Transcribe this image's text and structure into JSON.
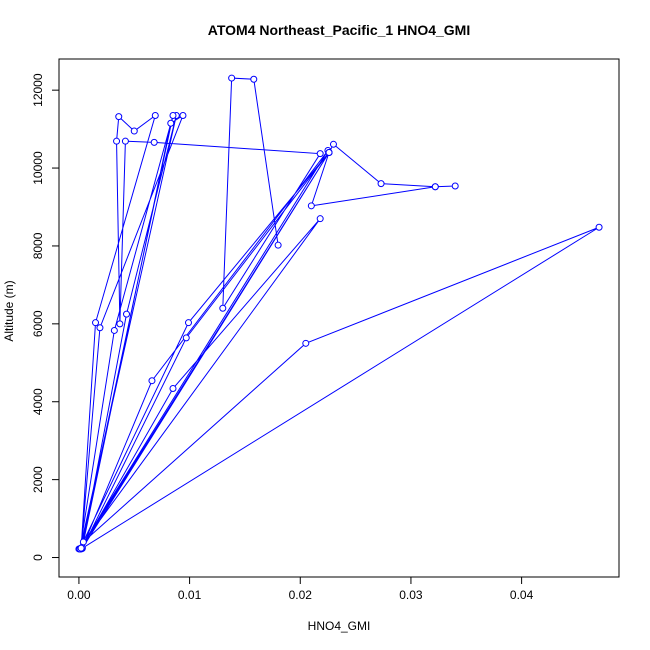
{
  "chart_data": {
    "type": "line",
    "title": "ATOM4 Northeast_Pacific_1 HNO4_GMI",
    "xlabel": "HNO4_GMI",
    "ylabel": "Altitude (m)",
    "xlim": [
      -0.0018,
      0.0488
    ],
    "ylim": [
      -500,
      12800
    ],
    "x_ticks": [
      0.0,
      0.01,
      0.02,
      0.03,
      0.04
    ],
    "x_tick_labels": [
      "0.00",
      "0.01",
      "0.02",
      "0.03",
      "0.04"
    ],
    "y_ticks": [
      0,
      2000,
      4000,
      6000,
      8000,
      10000,
      12000
    ],
    "y_tick_labels": [
      "0",
      "2000",
      "4000",
      "6000",
      "8000",
      "10000",
      "12000"
    ],
    "grid": false,
    "legend": "none",
    "series": [
      {
        "color": "#0000ff",
        "marker": "open-circle",
        "x": [
          0.0001,
          0.0004,
          0.0205,
          0.047,
          0.0002,
          0.0085,
          0.0218,
          0.0,
          0.0003,
          0.0066,
          0.0225,
          0.0001,
          0.0099,
          0.0226,
          0.0003,
          0.0097,
          0.0226,
          0.023,
          0.0273,
          0.0322,
          0.034,
          0.0322,
          0.021,
          0.0226,
          0.0002,
          0.0019,
          0.0094,
          0.0083,
          0.0003,
          0.0043,
          0.0088,
          0.0001,
          0.0032,
          0.0085,
          0.0002,
          0.0015,
          0.0069,
          0.005,
          0.0036,
          0.0034,
          0.0037,
          0.0042,
          0.0068,
          0.0218,
          0.013,
          0.0138,
          0.0158,
          0.018
        ],
        "y": [
          220,
          400,
          5500,
          8480,
          220,
          4340,
          8700,
          220,
          250,
          4540,
          10450,
          230,
          6030,
          10400,
          230,
          5640,
          10400,
          10610,
          9600,
          9520,
          9540,
          9520,
          9030,
          10400,
          240,
          5900,
          11350,
          11150,
          250,
          6250,
          11350,
          220,
          5830,
          11350,
          240,
          6030,
          11350,
          10950,
          11320,
          10690,
          6000,
          10690,
          10660,
          10370,
          6400,
          12310,
          12280,
          8020
        ]
      }
    ]
  }
}
